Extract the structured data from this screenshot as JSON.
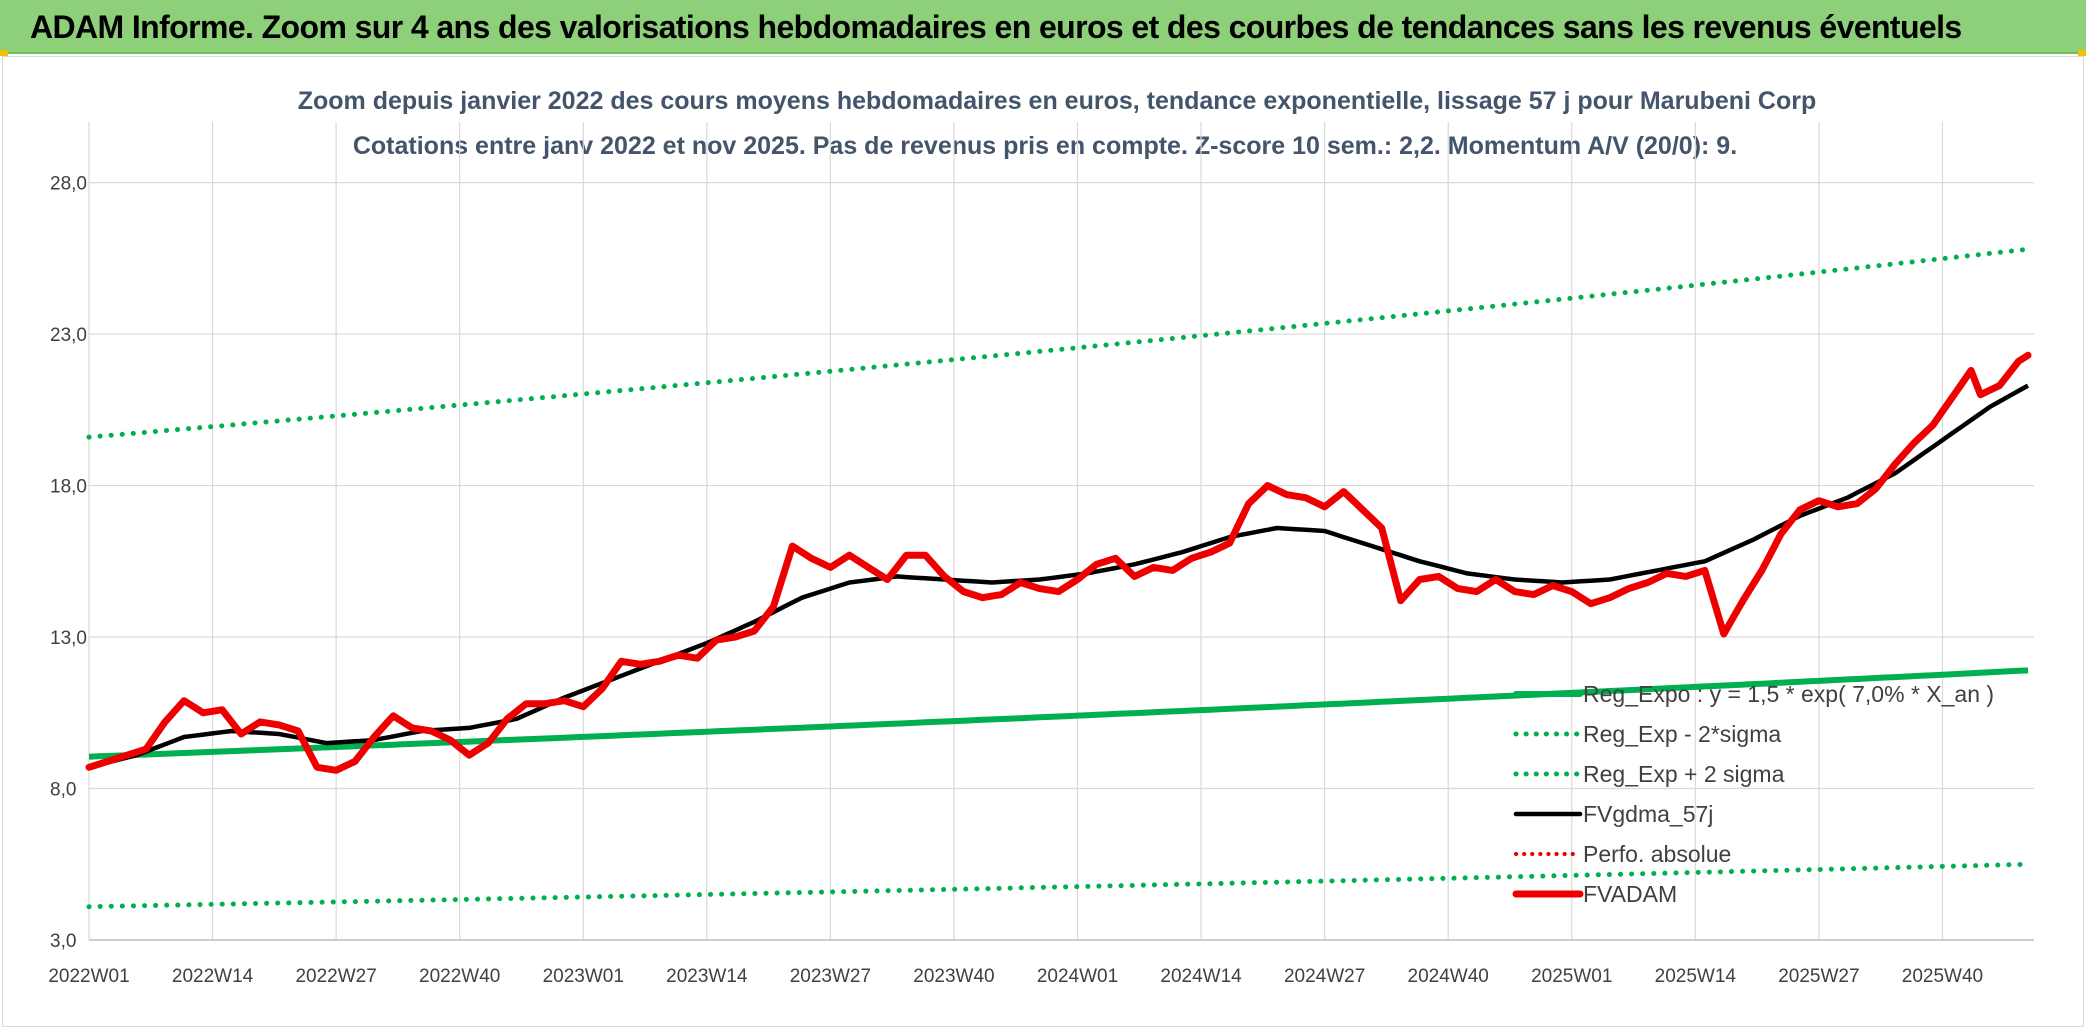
{
  "banner": {
    "title": "ADAM Informe. Zoom sur 4 ans des valorisations hebdomadaires en euros et des courbes de tendances sans les revenus éventuels"
  },
  "chart_data": {
    "type": "line",
    "title": "Zoom depuis janvier 2022 des cours moyens hebdomadaires en euros, tendance exponentielle, lissage 57 j pour Marubeni Corp",
    "subtitle": "Cotations entre janv 2022 et nov 2025. Pas de revenus pris en compte. Z-score 10 sem.: 2,2. Momentum A/V (20/0): 9.",
    "ylim": [
      3,
      30
    ],
    "y_ticks": [
      "3,0",
      "8,0",
      "13,0",
      "18,0",
      "23,0",
      "28,0"
    ],
    "x_ticks": [
      "2022W01",
      "2022W14",
      "2022W27",
      "2022W40",
      "2023W01",
      "2023W14",
      "2023W27",
      "2023W40",
      "2024W01",
      "2024W14",
      "2024W27",
      "2024W40",
      "2025W01",
      "2025W14",
      "2025W27",
      "2025W40"
    ],
    "x_tick_index": [
      0,
      13,
      26,
      39,
      52,
      65,
      78,
      91,
      104,
      117,
      130,
      143,
      156,
      169,
      182,
      195
    ],
    "n_points": 205,
    "grid": "on",
    "legend_position": "bottom-right",
    "colors": {
      "reg": "#00b050",
      "fv57": "#000000",
      "perfo": "#e60000",
      "fvadam": "#ee0000"
    },
    "series": [
      {
        "name": "Reg_Expo : y = 1,5 * exp( 7,0% *  X_an )",
        "style": "thick-solid",
        "color": "#00b050",
        "start": 9.05,
        "end": 11.9
      },
      {
        "name": "Reg_Exp - 2*sigma",
        "style": "dotted",
        "color": "#00b050",
        "start": 4.1,
        "end": 5.5
      },
      {
        "name": "Reg_Exp + 2 sigma",
        "style": "dotted",
        "color": "#00b050",
        "start": 19.6,
        "end": 25.8
      },
      {
        "name": "FVgdma_57j",
        "style": "solid",
        "color": "#000000",
        "knots": [
          [
            0,
            8.7
          ],
          [
            5,
            9.1
          ],
          [
            10,
            9.7
          ],
          [
            15,
            9.9
          ],
          [
            20,
            9.8
          ],
          [
            25,
            9.5
          ],
          [
            30,
            9.6
          ],
          [
            35,
            9.9
          ],
          [
            40,
            10.0
          ],
          [
            45,
            10.3
          ],
          [
            50,
            11.0
          ],
          [
            55,
            11.6
          ],
          [
            60,
            12.2
          ],
          [
            65,
            12.8
          ],
          [
            70,
            13.5
          ],
          [
            75,
            14.3
          ],
          [
            80,
            14.8
          ],
          [
            85,
            15.0
          ],
          [
            90,
            14.9
          ],
          [
            95,
            14.8
          ],
          [
            100,
            14.9
          ],
          [
            105,
            15.1
          ],
          [
            110,
            15.4
          ],
          [
            115,
            15.8
          ],
          [
            120,
            16.3
          ],
          [
            125,
            16.6
          ],
          [
            130,
            16.5
          ],
          [
            135,
            16.0
          ],
          [
            140,
            15.5
          ],
          [
            145,
            15.1
          ],
          [
            150,
            14.9
          ],
          [
            155,
            14.8
          ],
          [
            160,
            14.9
          ],
          [
            165,
            15.2
          ],
          [
            170,
            15.5
          ],
          [
            175,
            16.2
          ],
          [
            180,
            17.0
          ],
          [
            185,
            17.6
          ],
          [
            190,
            18.4
          ],
          [
            195,
            19.5
          ],
          [
            200,
            20.6
          ],
          [
            204,
            21.3
          ]
        ]
      },
      {
        "name": "Perfo. absolue",
        "style": "dotted",
        "color": "#e60000"
      },
      {
        "name": "FVADAM",
        "style": "thick-solid",
        "color": "#ee0000",
        "knots": [
          [
            0,
            8.7
          ],
          [
            3,
            9.0
          ],
          [
            6,
            9.3
          ],
          [
            8,
            10.2
          ],
          [
            10,
            10.9
          ],
          [
            12,
            10.5
          ],
          [
            14,
            10.6
          ],
          [
            16,
            9.8
          ],
          [
            18,
            10.2
          ],
          [
            20,
            10.1
          ],
          [
            22,
            9.9
          ],
          [
            24,
            8.7
          ],
          [
            26,
            8.6
          ],
          [
            28,
            8.9
          ],
          [
            30,
            9.7
          ],
          [
            32,
            10.4
          ],
          [
            34,
            10.0
          ],
          [
            36,
            9.9
          ],
          [
            38,
            9.6
          ],
          [
            40,
            9.1
          ],
          [
            42,
            9.5
          ],
          [
            44,
            10.3
          ],
          [
            46,
            10.8
          ],
          [
            48,
            10.8
          ],
          [
            50,
            10.9
          ],
          [
            52,
            10.7
          ],
          [
            54,
            11.3
          ],
          [
            56,
            12.2
          ],
          [
            58,
            12.1
          ],
          [
            60,
            12.2
          ],
          [
            62,
            12.4
          ],
          [
            64,
            12.3
          ],
          [
            66,
            12.9
          ],
          [
            68,
            13.0
          ],
          [
            70,
            13.2
          ],
          [
            72,
            14.0
          ],
          [
            74,
            16.0
          ],
          [
            76,
            15.6
          ],
          [
            78,
            15.3
          ],
          [
            80,
            15.7
          ],
          [
            82,
            15.3
          ],
          [
            84,
            14.9
          ],
          [
            86,
            15.7
          ],
          [
            88,
            15.7
          ],
          [
            90,
            15.0
          ],
          [
            92,
            14.5
          ],
          [
            94,
            14.3
          ],
          [
            96,
            14.4
          ],
          [
            98,
            14.8
          ],
          [
            100,
            14.6
          ],
          [
            102,
            14.5
          ],
          [
            104,
            14.9
          ],
          [
            106,
            15.4
          ],
          [
            108,
            15.6
          ],
          [
            110,
            15.0
          ],
          [
            112,
            15.3
          ],
          [
            114,
            15.2
          ],
          [
            116,
            15.6
          ],
          [
            118,
            15.8
          ],
          [
            120,
            16.1
          ],
          [
            122,
            17.4
          ],
          [
            124,
            18.0
          ],
          [
            126,
            17.7
          ],
          [
            128,
            17.6
          ],
          [
            130,
            17.3
          ],
          [
            132,
            17.8
          ],
          [
            134,
            17.2
          ],
          [
            136,
            16.6
          ],
          [
            138,
            14.2
          ],
          [
            140,
            14.9
          ],
          [
            142,
            15.0
          ],
          [
            144,
            14.6
          ],
          [
            146,
            14.5
          ],
          [
            148,
            14.9
          ],
          [
            150,
            14.5
          ],
          [
            152,
            14.4
          ],
          [
            154,
            14.7
          ],
          [
            156,
            14.5
          ],
          [
            158,
            14.1
          ],
          [
            160,
            14.3
          ],
          [
            162,
            14.6
          ],
          [
            164,
            14.8
          ],
          [
            166,
            15.1
          ],
          [
            168,
            15.0
          ],
          [
            170,
            15.2
          ],
          [
            172,
            13.1
          ],
          [
            174,
            14.2
          ],
          [
            176,
            15.2
          ],
          [
            178,
            16.4
          ],
          [
            180,
            17.2
          ],
          [
            182,
            17.5
          ],
          [
            184,
            17.3
          ],
          [
            186,
            17.4
          ],
          [
            188,
            17.9
          ],
          [
            190,
            18.7
          ],
          [
            192,
            19.4
          ],
          [
            194,
            20.0
          ],
          [
            196,
            20.9
          ],
          [
            198,
            21.8
          ],
          [
            199,
            21.0
          ],
          [
            201,
            21.3
          ],
          [
            203,
            22.1
          ],
          [
            204,
            22.3
          ]
        ]
      }
    ]
  }
}
